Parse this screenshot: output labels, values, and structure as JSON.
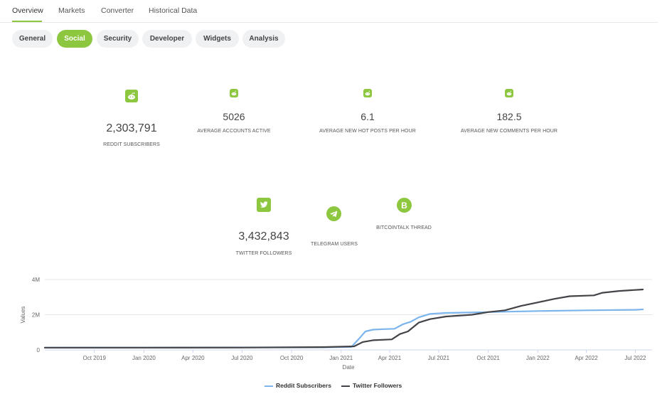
{
  "tabs": [
    "Overview",
    "Markets",
    "Converter",
    "Historical Data"
  ],
  "pills": [
    "General",
    "Social",
    "Security",
    "Developer",
    "Widgets",
    "Analysis"
  ],
  "reddit": {
    "subscribers": "2,303,791",
    "subscribers_label": "REDDIT SUBSCRIBERS",
    "accounts_active": "5026",
    "accounts_active_label": "AVERAGE ACCOUNTS ACTIVE",
    "hot_posts": "6.1",
    "hot_posts_label": "AVERAGE NEW HOT POSTS PER HOUR",
    "comments": "182.5",
    "comments_label": "AVERAGE NEW COMMENTS PER HOUR"
  },
  "twitter": {
    "followers": "3,432,843",
    "label": "TWITTER FOLLOWERS"
  },
  "telegram": {
    "label": "TELEGRAM USERS"
  },
  "bitcointalk": {
    "label": "BITCOINTALK THREAD"
  },
  "colors": {
    "accent": "#8dc63f",
    "reddit_line": "#7cb5ec",
    "twitter_line": "#434348"
  },
  "icons": [
    "reddit-icon",
    "twitter-icon",
    "telegram-icon",
    "bitcoin-icon"
  ],
  "chart_data": {
    "type": "line",
    "xlabel": "Date",
    "ylabel": "Values",
    "x_ticks": [
      "Oct 2019",
      "Jan 2020",
      "Apr 2020",
      "Jul 2020",
      "Oct 2020",
      "Jan 2021",
      "Apr 2021",
      "Jul 2021",
      "Oct 2021",
      "Jan 2022",
      "Apr 2022",
      "Jul 2022"
    ],
    "y_ticks": [
      "0",
      "2M",
      "4M"
    ],
    "ylim": [
      0,
      4000000
    ],
    "xlim": [
      "2019-07-01",
      "2022-08-01"
    ],
    "grid": true,
    "legend_position": "bottom",
    "series": [
      {
        "name": "Reddit Subscribers",
        "points": [
          [
            "2019-07-01",
            130000
          ],
          [
            "2020-01-01",
            135000
          ],
          [
            "2020-07-01",
            140000
          ],
          [
            "2020-12-01",
            145000
          ],
          [
            "2021-01-20",
            170000
          ],
          [
            "2021-02-05",
            700000
          ],
          [
            "2021-02-15",
            1050000
          ],
          [
            "2021-03-01",
            1150000
          ],
          [
            "2021-03-20",
            1180000
          ],
          [
            "2021-04-10",
            1200000
          ],
          [
            "2021-04-25",
            1450000
          ],
          [
            "2021-05-10",
            1600000
          ],
          [
            "2021-05-25",
            1850000
          ],
          [
            "2021-06-15",
            2050000
          ],
          [
            "2021-07-15",
            2100000
          ],
          [
            "2021-10-01",
            2150000
          ],
          [
            "2022-01-01",
            2210000
          ],
          [
            "2022-04-01",
            2250000
          ],
          [
            "2022-07-01",
            2280000
          ],
          [
            "2022-07-15",
            2303791
          ]
        ]
      },
      {
        "name": "Twitter Followers",
        "points": [
          [
            "2019-07-01",
            130000
          ],
          [
            "2020-01-01",
            130000
          ],
          [
            "2020-07-01",
            135000
          ],
          [
            "2020-12-01",
            160000
          ],
          [
            "2021-01-25",
            200000
          ],
          [
            "2021-02-10",
            450000
          ],
          [
            "2021-03-01",
            550000
          ],
          [
            "2021-04-05",
            600000
          ],
          [
            "2021-04-20",
            900000
          ],
          [
            "2021-05-05",
            1050000
          ],
          [
            "2021-05-25",
            1550000
          ],
          [
            "2021-06-15",
            1750000
          ],
          [
            "2021-07-15",
            1900000
          ],
          [
            "2021-09-01",
            2000000
          ],
          [
            "2021-10-01",
            2150000
          ],
          [
            "2021-11-01",
            2250000
          ],
          [
            "2021-12-01",
            2500000
          ],
          [
            "2022-01-01",
            2700000
          ],
          [
            "2022-02-01",
            2900000
          ],
          [
            "2022-03-01",
            3050000
          ],
          [
            "2022-04-15",
            3100000
          ],
          [
            "2022-05-01",
            3250000
          ],
          [
            "2022-06-01",
            3350000
          ],
          [
            "2022-07-15",
            3432843
          ]
        ]
      }
    ]
  }
}
